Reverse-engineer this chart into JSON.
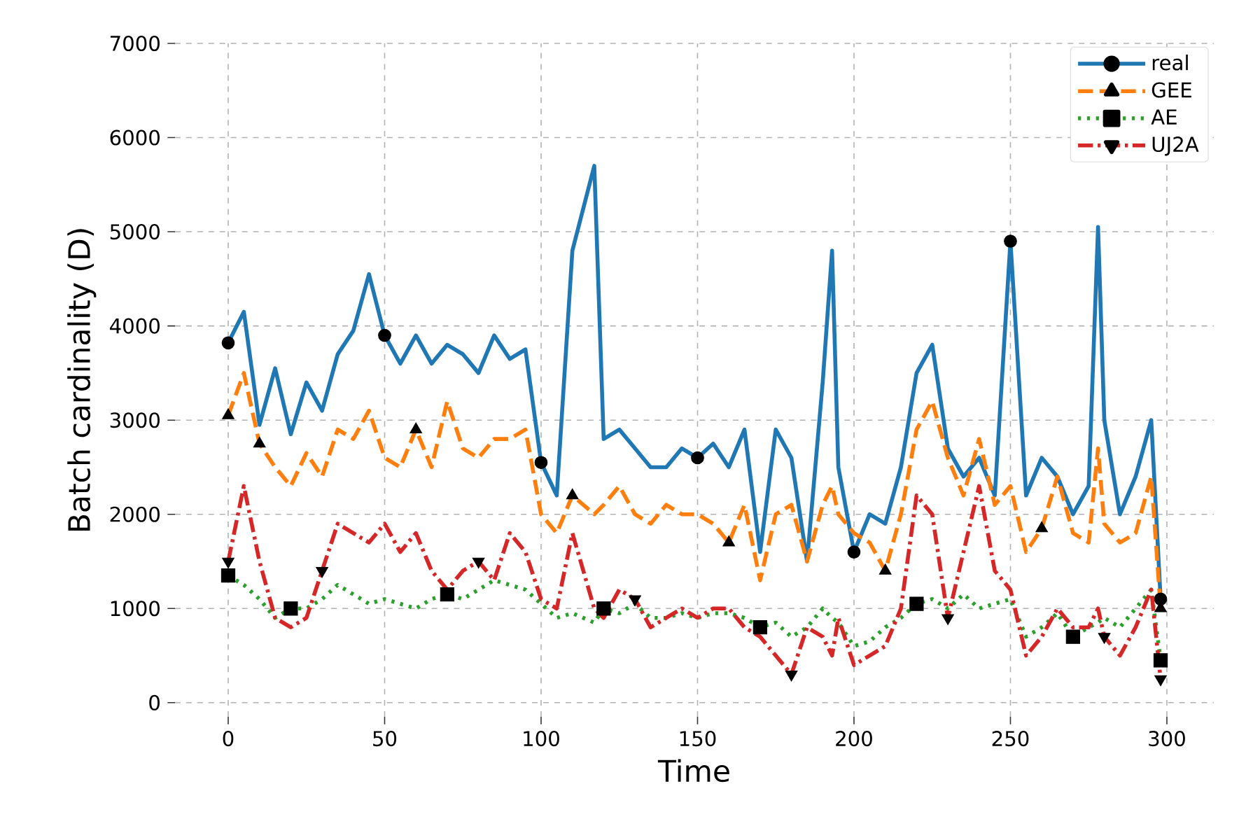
{
  "chart_data": {
    "type": "line",
    "xlabel": "Time",
    "ylabel": "Batch cardinality (D)",
    "x": [
      0,
      5,
      10,
      15,
      20,
      25,
      30,
      35,
      40,
      45,
      50,
      55,
      60,
      65,
      70,
      75,
      80,
      85,
      90,
      95,
      100,
      105,
      110,
      117,
      120,
      125,
      130,
      135,
      140,
      145,
      150,
      155,
      160,
      165,
      170,
      175,
      180,
      185,
      190,
      193,
      195,
      200,
      205,
      210,
      215,
      220,
      225,
      230,
      235,
      240,
      245,
      250,
      255,
      260,
      265,
      270,
      275,
      278,
      280,
      285,
      290,
      295,
      298
    ],
    "series": [
      {
        "name": "real",
        "color": "#1f77b4",
        "line_style": "solid",
        "values": [
          3820,
          4150,
          2950,
          3550,
          2850,
          3400,
          3100,
          3700,
          3950,
          4550,
          3900,
          3600,
          3900,
          3600,
          3800,
          3700,
          3500,
          3900,
          3650,
          3750,
          2550,
          2200,
          4800,
          5700,
          2800,
          2900,
          2700,
          2500,
          2500,
          2700,
          2600,
          2750,
          2500,
          2900,
          1600,
          2900,
          2600,
          1500,
          3400,
          4800,
          2500,
          1600,
          2000,
          1900,
          2500,
          3500,
          3800,
          2700,
          2400,
          2600,
          2200,
          4900,
          2200,
          2600,
          2400,
          2000,
          2300,
          5050,
          3000,
          2000,
          2400,
          3000,
          1100
        ]
      },
      {
        "name": "GEE",
        "color": "#ff7f0e",
        "line_style": "dashed",
        "values": [
          3050,
          3500,
          2750,
          2500,
          2300,
          2650,
          2400,
          2900,
          2800,
          3100,
          2600,
          2500,
          2900,
          2500,
          3200,
          2700,
          2600,
          2800,
          2800,
          2900,
          2000,
          1800,
          2200,
          2000,
          2100,
          2300,
          2000,
          1900,
          2100,
          2000,
          2000,
          1900,
          1700,
          2100,
          1300,
          2000,
          2100,
          1500,
          2100,
          2300,
          2000,
          1800,
          1700,
          1400,
          2000,
          2900,
          3200,
          2600,
          2200,
          2800,
          2100,
          2300,
          1600,
          1850,
          2400,
          1800,
          1700,
          2700,
          1900,
          1700,
          1800,
          2400,
          1000
        ]
      },
      {
        "name": "AE",
        "color": "#2ca02c",
        "line_style": "dotted",
        "values": [
          1350,
          1250,
          1100,
          900,
          1000,
          1000,
          1100,
          1250,
          1150,
          1050,
          1100,
          1050,
          1000,
          1100,
          1150,
          1100,
          1200,
          1300,
          1250,
          1200,
          1050,
          900,
          950,
          850,
          1000,
          950,
          1050,
          900,
          900,
          950,
          900,
          950,
          950,
          900,
          800,
          850,
          700,
          800,
          1000,
          900,
          850,
          600,
          650,
          800,
          900,
          1050,
          1100,
          1000,
          1150,
          1000,
          1050,
          1100,
          700,
          800,
          950,
          700,
          800,
          850,
          900,
          800,
          1000,
          1200,
          450
        ]
      },
      {
        "name": "UJ2A",
        "color": "#d62728",
        "line_style": "dashdot",
        "values": [
          1500,
          2300,
          1500,
          900,
          800,
          900,
          1400,
          1900,
          1800,
          1700,
          1900,
          1600,
          1800,
          1400,
          1200,
          1400,
          1500,
          1300,
          1800,
          1600,
          1100,
          1000,
          1800,
          1000,
          900,
          1200,
          1100,
          800,
          900,
          1000,
          900,
          1000,
          1000,
          800,
          700,
          500,
          300,
          800,
          700,
          500,
          900,
          400,
          500,
          600,
          1000,
          2200,
          2000,
          900,
          1600,
          2300,
          1400,
          1200,
          500,
          700,
          1000,
          800,
          800,
          1000,
          700,
          500,
          800,
          1200,
          250
        ]
      },
      {
        "type": "scatter",
        "color": "#000000",
        "marker": "circle",
        "x": [
          0,
          50,
          100,
          150,
          200,
          250,
          298
        ],
        "values": [
          3820,
          3900,
          2550,
          2600,
          1600,
          4900,
          1100
        ]
      },
      {
        "type": "scatter",
        "color": "#000000",
        "marker": "triangle",
        "x": [
          0,
          10,
          60,
          110,
          160,
          210,
          260,
          298
        ],
        "values": [
          3050,
          2750,
          2900,
          2200,
          1700,
          1400,
          1850,
          1000
        ]
      },
      {
        "type": "scatter",
        "color": "#000000",
        "marker": "square",
        "x": [
          0,
          20,
          70,
          120,
          170,
          220,
          270,
          298
        ],
        "values": [
          1350,
          1000,
          1150,
          1000,
          800,
          1050,
          700,
          450
        ]
      },
      {
        "type": "scatter",
        "color": "#000000",
        "marker": "triangle_down",
        "x": [
          0,
          30,
          80,
          130,
          180,
          230,
          280,
          298
        ],
        "values": [
          1500,
          1400,
          1500,
          1100,
          300,
          900,
          700,
          250
        ]
      }
    ],
    "xlim": [
      -17,
      315
    ],
    "ylim": [
      -150,
      7000
    ],
    "xticks": [
      0,
      50,
      100,
      150,
      200,
      250,
      300
    ],
    "yticks": [
      0,
      1000,
      2000,
      3000,
      4000,
      5000,
      6000,
      7000
    ],
    "grid": true,
    "legend": "top right"
  }
}
